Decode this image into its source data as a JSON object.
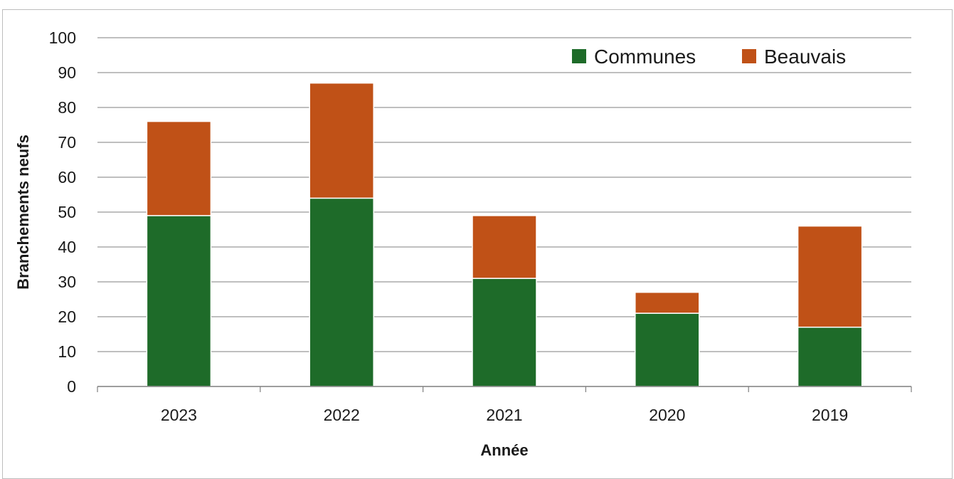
{
  "chart_data": {
    "type": "bar",
    "stacked": true,
    "categories": [
      "2023",
      "2022",
      "2021",
      "2020",
      "2019"
    ],
    "series": [
      {
        "name": "Communes",
        "color": "#1e6b29",
        "values": [
          49,
          54,
          31,
          21,
          17
        ]
      },
      {
        "name": "Beauvais",
        "color": "#c05117",
        "values": [
          27,
          33,
          18,
          6,
          29
        ]
      }
    ],
    "xlabel": "Année",
    "ylabel": "Branchements neufs",
    "ylim": [
      0,
      100
    ],
    "yticks": [
      "0",
      "10",
      "20",
      "30",
      "40",
      "50",
      "60",
      "70",
      "80",
      "90",
      "100"
    ],
    "grid": true,
    "legend_position": "top-right"
  }
}
